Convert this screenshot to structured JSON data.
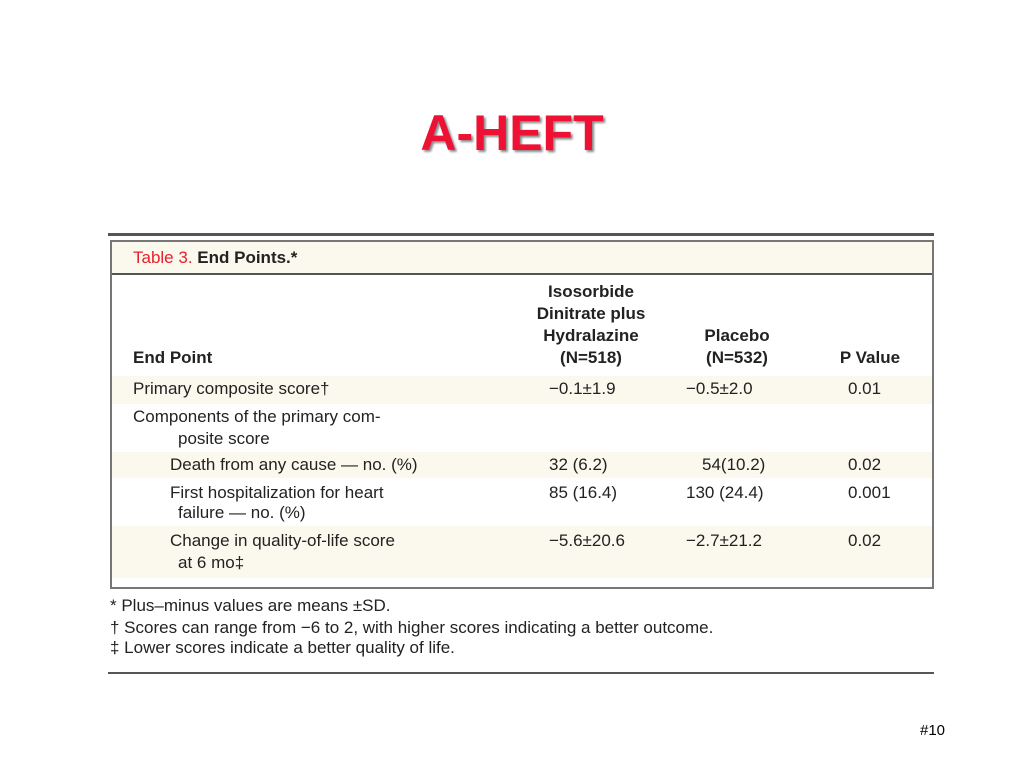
{
  "slide": {
    "title": "A-HEFT",
    "page_number": "#10"
  },
  "table": {
    "caption_label": "Table 3.",
    "caption_text": "End Points.*",
    "headers": {
      "endpoint": "End Point",
      "iso_line1": "Isosorbide",
      "iso_line2": "Dinitrate plus",
      "iso_line3": "Hydralazine",
      "iso_line4": "(N=518)",
      "placebo_line1": "Placebo",
      "placebo_line2": "(N=532)",
      "pvalue": "P Value"
    },
    "rows": [
      {
        "label": "Primary composite score†",
        "iso": "−0.1±1.9",
        "placebo": "−0.5±2.0",
        "p": "0.01"
      },
      {
        "label": "Components of the primary com-",
        "label2": "posite score"
      },
      {
        "label": "Death from any cause — no. (%)",
        "iso": "32 (6.2)",
        "placebo": "54(10.2)",
        "p": "0.02"
      },
      {
        "label": "First hospitalization for heart",
        "label2": "failure — no. (%)",
        "iso": "85 (16.4)",
        "placebo": "130 (24.4)",
        "p": "0.001"
      },
      {
        "label": "Change in quality-of-life score",
        "label2": "at 6 mo‡",
        "iso": "−5.6±20.6",
        "placebo": "−2.7±21.2",
        "p": "0.02"
      }
    ],
    "footnotes": [
      "* Plus–minus values are means ±SD.",
      "† Scores can range from −6 to 2, with higher scores indicating a better outcome.",
      "‡ Lower scores indicate a better quality of life."
    ],
    "colors": {
      "caption_label": "#e8202a",
      "title": "#ee1133",
      "band": "#fbf8ee"
    }
  }
}
